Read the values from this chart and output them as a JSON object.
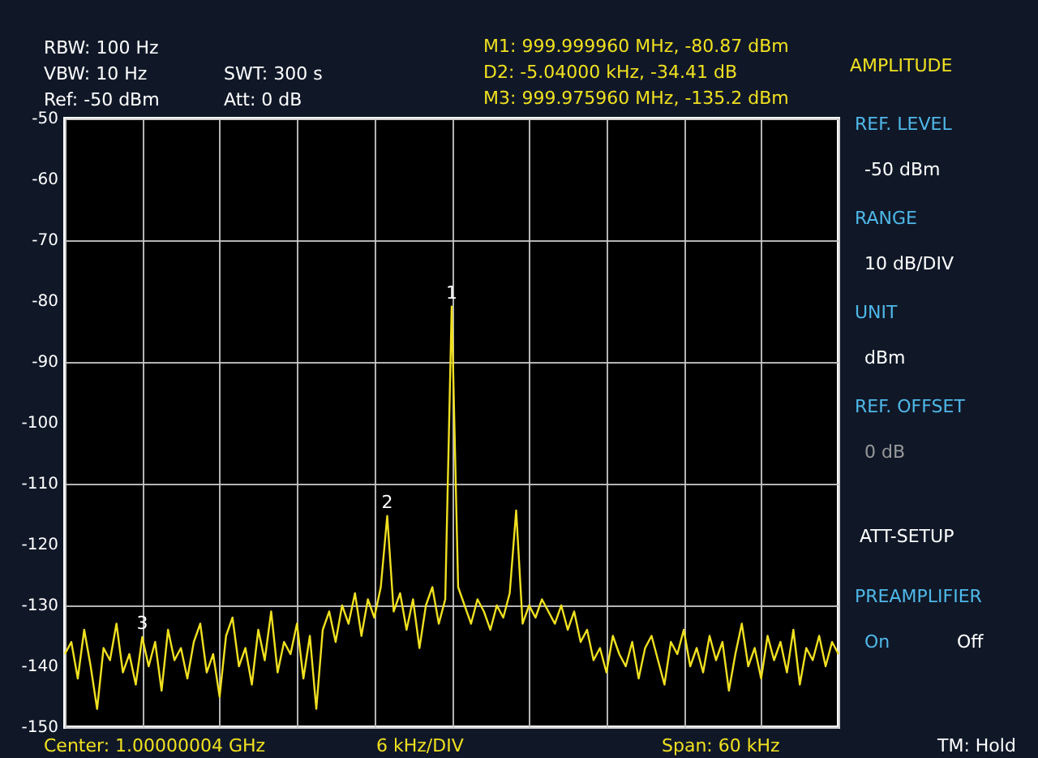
{
  "chart_data": {
    "type": "line",
    "categories": [
      null,
      null,
      null,
      null,
      null,
      null,
      null,
      null,
      null,
      null,
      null,
      null,
      null,
      null,
      null,
      null,
      null,
      null,
      null,
      null,
      null,
      null,
      null,
      null,
      null,
      null,
      null,
      null,
      null,
      null,
      null,
      null,
      null,
      null,
      null,
      null,
      null,
      null,
      null,
      null,
      null,
      null,
      null,
      null,
      null,
      null,
      null,
      null,
      null,
      null,
      null,
      null,
      null,
      null,
      null,
      null,
      null,
      null,
      null,
      null,
      null,
      null,
      null,
      null,
      null,
      null,
      null,
      null,
      null,
      null,
      null,
      null,
      null,
      null,
      null,
      null,
      null,
      null,
      null,
      null,
      null,
      null,
      null,
      null,
      null,
      null,
      null,
      null,
      null,
      null,
      null,
      null,
      null,
      null,
      null,
      null,
      null,
      null,
      null,
      null,
      null,
      null,
      null,
      null,
      null,
      null,
      null,
      null,
      null,
      null,
      null,
      null,
      null,
      null,
      null,
      null,
      null,
      null,
      null,
      null,
      null
    ],
    "series": [
      {
        "color": "#f0e020",
        "values": [
          -138,
          -136,
          -142,
          -134,
          -140,
          -147,
          -137,
          -139,
          -133,
          -141,
          -138,
          -143,
          -135.2,
          -140,
          -136,
          -144,
          -134,
          -139,
          -137,
          -142,
          -136,
          -133,
          -141,
          -138,
          -145,
          -135,
          -132,
          -140,
          -137,
          -143,
          -134,
          -139,
          -131,
          -141,
          -136,
          -138,
          -133,
          -142,
          -135,
          -147,
          -134,
          -131,
          -136,
          -130,
          -133,
          -128,
          -135,
          -129,
          -132,
          -127,
          -115.3,
          -131,
          -128,
          -134,
          -129,
          -137,
          -130,
          -127,
          -133,
          -129,
          -80.9,
          -127,
          -130,
          -133,
          -129,
          -131,
          -134,
          -130,
          -132,
          -128,
          -114.4,
          -133,
          -130,
          -132,
          -129,
          -131,
          -133,
          -130,
          -134,
          -131,
          -136,
          -134,
          -139,
          -137,
          -141,
          -135,
          -138,
          -140,
          -136,
          -142,
          -137,
          -135,
          -139,
          -143,
          -136,
          -138,
          -134,
          -140,
          -137,
          -141,
          -135,
          -139,
          -136,
          -144,
          -138,
          -133,
          -140,
          -137,
          -142,
          -135,
          -139,
          -136,
          -141,
          -134,
          -143,
          -137,
          -139,
          -135,
          -140,
          -136,
          -138
        ]
      }
    ],
    "ylim": [
      -150,
      -50
    ],
    "yticks": [
      -50,
      -60,
      -70,
      -80,
      -90,
      -100,
      -110,
      -120,
      -130,
      -140,
      -150
    ],
    "tick_labels": "y",
    "grid": true,
    "line_style": "solid",
    "annotations": [
      "RBW: 100 Hz",
      "VBW: 10 Hz",
      "Ref: -50 dBm",
      "SWT: 300 s",
      "Att: 0 dB",
      "M1: 999.999960 MHz, -80.87 dBm",
      "D2: -5.04000 kHz, -34.41 dB",
      "M3: 999.975960 MHz, -135.2 dBm",
      "AMPLITUDE",
      "REF. LEVEL",
      "-50 dBm",
      "RANGE",
      "10 dB/DIV",
      "UNIT",
      "dBm",
      "REF. OFFSET",
      "0 dB",
      "ATT-SETUP",
      "PREAMPLIFIER",
      "On",
      "Off",
      "Center: 1.00000004 GHz",
      "6 kHz/DIV",
      "Span: 60 kHz",
      "TM: Hold",
      {
        "text": "1",
        "y": -80.9
      },
      {
        "text": "2",
        "y": -115.3
      },
      {
        "text": "3",
        "y": -135.2
      }
    ]
  }
}
